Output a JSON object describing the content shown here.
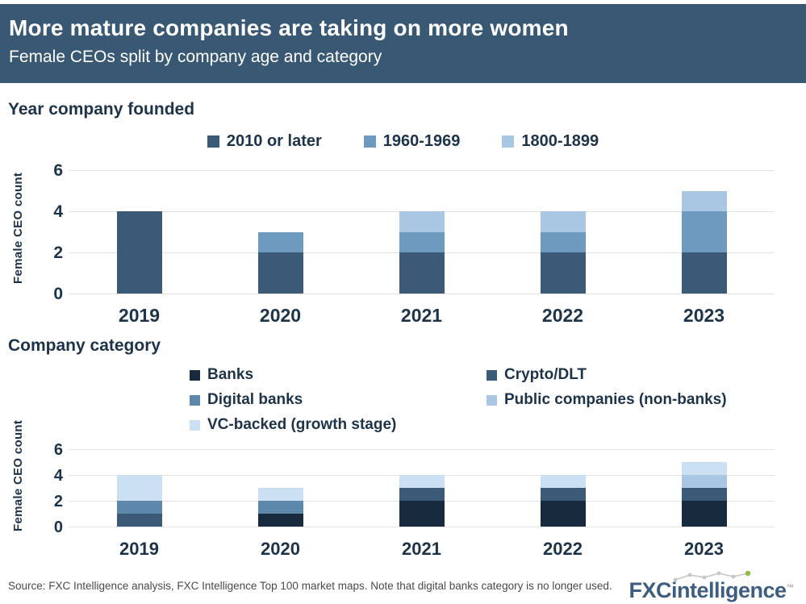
{
  "header": {
    "title": "More mature companies are taking on more women",
    "subtitle": "Female CEOs split by company age and category",
    "bg_color": "#395873"
  },
  "chart_data": [
    {
      "type": "bar",
      "stacked": true,
      "section_title": "Year company founded",
      "ylabel": "Female CEO count",
      "categories": [
        "2019",
        "2020",
        "2021",
        "2022",
        "2023"
      ],
      "series": [
        {
          "name": "2010 or later",
          "color": "#3B5A77",
          "values": [
            4,
            2,
            2,
            2,
            2
          ]
        },
        {
          "name": "1960-1969",
          "color": "#6E9AC0",
          "values": [
            0,
            1,
            1,
            1,
            2
          ]
        },
        {
          "name": "1800-1899",
          "color": "#A9C7E3",
          "values": [
            0,
            0,
            1,
            1,
            1
          ]
        }
      ],
      "totals": [
        4,
        3,
        4,
        4,
        5
      ],
      "yticks": [
        0,
        2,
        4,
        6
      ],
      "ylim": [
        0,
        6
      ],
      "grid": "horizontal",
      "legend_position": "top-center-row"
    },
    {
      "type": "bar",
      "stacked": true,
      "section_title": "Company category",
      "ylabel": "Female CEO count",
      "categories": [
        "2019",
        "2020",
        "2021",
        "2022",
        "2023"
      ],
      "series": [
        {
          "name": "Banks",
          "color": "#182A3E",
          "values": [
            0,
            1,
            2,
            2,
            2
          ]
        },
        {
          "name": "Crypto/DLT",
          "color": "#3B5A77",
          "values": [
            1,
            0,
            1,
            1,
            1
          ]
        },
        {
          "name": "Digital banks",
          "color": "#5E87AC",
          "values": [
            1,
            1,
            0,
            0,
            0
          ]
        },
        {
          "name": "Public companies (non-banks)",
          "color": "#A9C7E3",
          "values": [
            0,
            0,
            0,
            0,
            1
          ]
        },
        {
          "name": "VC-backed (growth stage)",
          "color": "#CBE1F3",
          "values": [
            2,
            1,
            1,
            1,
            1
          ]
        }
      ],
      "totals": [
        4,
        3,
        4,
        4,
        5
      ],
      "yticks": [
        0,
        2,
        4,
        6
      ],
      "ylim": [
        0,
        6
      ],
      "grid": "horizontal",
      "legend_position": "top-two-column-grid"
    }
  ],
  "footer": {
    "source": "Source: FXC Intelligence analysis, FXC Intelligence Top 100 market maps. Note that digital banks category is no longer used.",
    "logo": {
      "part1": "FXC",
      "part2": "intelligence",
      "tm": "™",
      "blue": "#3d5e82",
      "green": "#8CBF3B"
    }
  }
}
